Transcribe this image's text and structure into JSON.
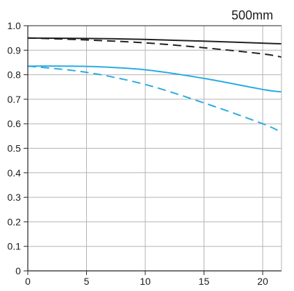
{
  "chart_data": {
    "type": "line",
    "title": "500mm",
    "xlim": [
      0,
      21.6
    ],
    "ylim": [
      0,
      1.0
    ],
    "x_ticks": [
      0,
      5,
      10,
      15,
      20
    ],
    "y_ticks": [
      "0",
      "0.1",
      "0.2",
      "0.3",
      "0.4",
      "0.5",
      "0.6",
      "0.7",
      "0.8",
      "0.9",
      "1.0"
    ],
    "grid": true,
    "series": [
      {
        "color": "#231f20",
        "dash": "solid",
        "x": [
          0,
          5,
          10,
          15,
          20,
          21.6
        ],
        "y": [
          0.95,
          0.948,
          0.944,
          0.937,
          0.929,
          0.926
        ]
      },
      {
        "color": "#231f20",
        "dash": "dashed",
        "x": [
          0,
          5,
          10,
          15,
          20,
          21.6
        ],
        "y": [
          0.95,
          0.942,
          0.93,
          0.91,
          0.885,
          0.872
        ]
      },
      {
        "color": "#29abe2",
        "dash": "solid",
        "x": [
          0,
          5,
          10,
          15,
          20,
          21.6
        ],
        "y": [
          0.835,
          0.834,
          0.82,
          0.785,
          0.74,
          0.73
        ]
      },
      {
        "color": "#29abe2",
        "dash": "dashed",
        "x": [
          0,
          5,
          10,
          15,
          20,
          21.6
        ],
        "y": [
          0.835,
          0.81,
          0.76,
          0.685,
          0.6,
          0.565
        ]
      }
    ]
  }
}
